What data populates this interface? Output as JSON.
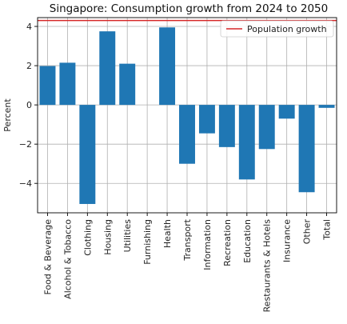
{
  "chart_data": {
    "type": "bar",
    "title": "Singapore: Consumption growth from 2024 to 2050",
    "xlabel": "",
    "ylabel": "Percent",
    "ylim": [
      -5.5,
      4.45
    ],
    "yticks": [
      -4,
      -2,
      0,
      2,
      4
    ],
    "grid": true,
    "legend_placement": "top-right",
    "categories": [
      "Food & Beverage",
      "Alcohol & Tobacco",
      "Clothing",
      "Housing",
      "Utilities",
      "Furnishing",
      "Health",
      "Transport",
      "Information",
      "Recreation",
      "Education",
      "Restaurants & Hotels",
      "Insurance",
      "Other",
      "Total"
    ],
    "series": [
      {
        "values": [
          1.98,
          2.15,
          -5.05,
          3.75,
          2.1,
          0.0,
          3.95,
          -3.0,
          -1.45,
          -2.15,
          -3.8,
          -2.25,
          -0.7,
          -4.45,
          -0.15
        ]
      }
    ],
    "reference_lines": [
      {
        "name": "Population growth",
        "y": 4.3
      }
    ],
    "colors": {
      "bar": "#1f77b4",
      "reference_line": "#d62728",
      "grid": "#b0b0b0"
    }
  }
}
